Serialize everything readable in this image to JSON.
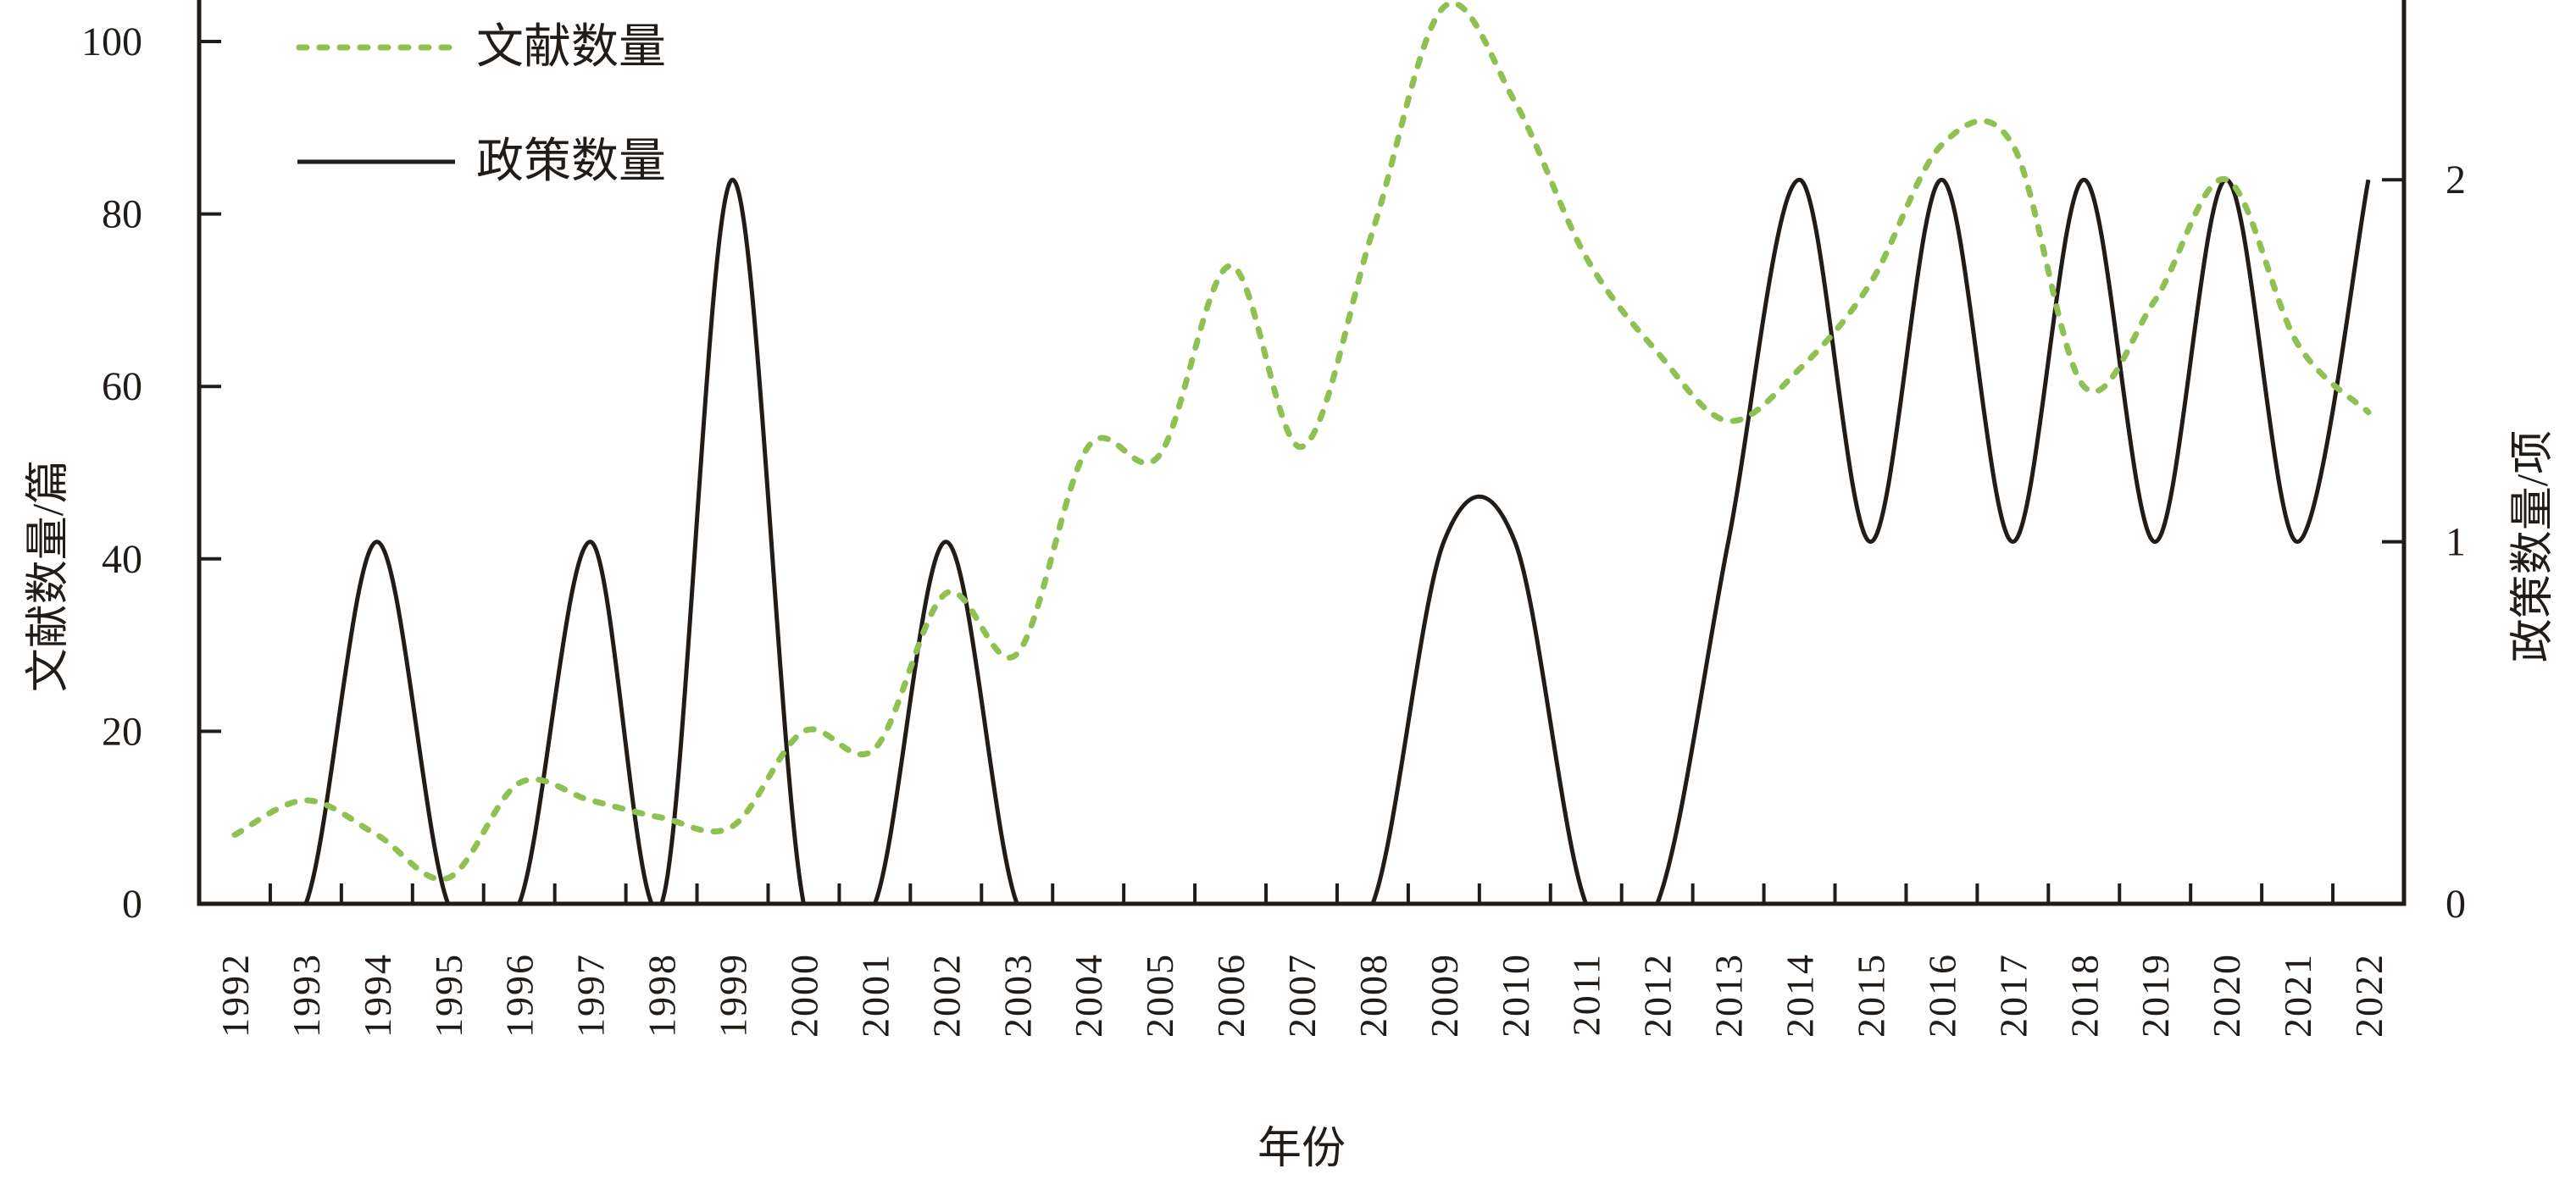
{
  "chart_data": {
    "type": "line",
    "title": "",
    "xlabel": "年份",
    "ylabel_left": "文献数量/篇",
    "ylabel_right": "政策数量/项",
    "x": [
      1992,
      1993,
      1994,
      1995,
      1996,
      1997,
      1998,
      1999,
      2000,
      2001,
      2002,
      2003,
      2004,
      2005,
      2006,
      2007,
      2008,
      2009,
      2010,
      2011,
      2012,
      2013,
      2014,
      2015,
      2016,
      2017,
      2018,
      2019,
      2020,
      2021,
      2022
    ],
    "series": [
      {
        "name": "文献数量",
        "axis": "left",
        "style": "dashed",
        "color": "#8fc152",
        "values": [
          8,
          12,
          8,
          3,
          14,
          12,
          10,
          9,
          20,
          18,
          36,
          29,
          53,
          52,
          74,
          53,
          78,
          104,
          93,
          75,
          64,
          56,
          62,
          72,
          88,
          88,
          60,
          70,
          84,
          65,
          57
        ]
      },
      {
        "name": "政策数量",
        "axis": "right",
        "style": "solid",
        "color": "#211c18",
        "values": [
          0,
          0,
          1,
          0,
          0,
          1,
          0,
          2,
          0,
          0,
          1,
          0,
          0,
          0,
          0,
          0,
          0,
          1,
          1,
          0,
          0,
          1,
          2,
          1,
          2,
          1,
          2,
          1,
          2,
          1,
          2
        ]
      }
    ],
    "y_axis_left": {
      "ticks": [
        0,
        20,
        40,
        60,
        80,
        100
      ],
      "lim": [
        0,
        105
      ]
    },
    "y_axis_right": {
      "ticks": [
        0,
        1,
        2
      ],
      "lim": [
        0,
        2.1
      ]
    },
    "legend_position": "top-left",
    "grid": false,
    "ink_color": "#211c18",
    "background": "#ffffff"
  }
}
